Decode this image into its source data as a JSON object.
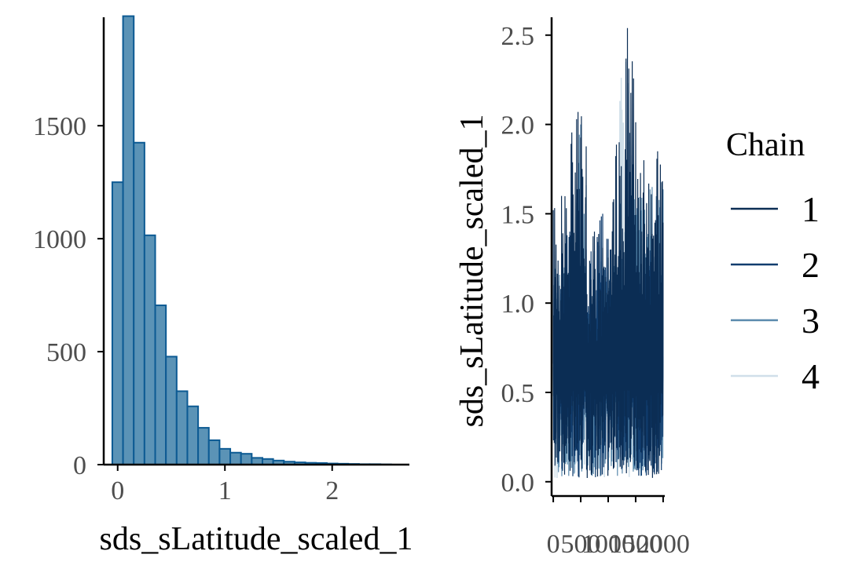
{
  "colors": {
    "bar_fill": "#5b93b6",
    "bar_stroke": "#0c5a93",
    "chain_1": "#0b2d54",
    "chain_2": "#113d6e",
    "chain_3": "#5a8aad",
    "chain_4": "#d0dfe9",
    "axis": "#000000",
    "tick_text": "#4d4d4d"
  },
  "chart_data": [
    {
      "type": "bar",
      "subtype": "histogram",
      "title": "",
      "xlabel": "sds_sLatitude_scaled_1",
      "ylabel": "",
      "xlim": [
        -0.13,
        2.72
      ],
      "ylim": [
        0,
        1980
      ],
      "xticks": [
        0,
        1,
        2
      ],
      "xtick_labels": [
        "0",
        "1",
        "2"
      ],
      "yticks": [
        0,
        500,
        1000,
        1500
      ],
      "ytick_labels": [
        "0",
        "500",
        "1000",
        "1500"
      ],
      "bin_width": 0.1,
      "bin_starts": [
        -0.05,
        0.05,
        0.15,
        0.25,
        0.35,
        0.45,
        0.55,
        0.65,
        0.75,
        0.85,
        0.95,
        1.05,
        1.15,
        1.25,
        1.35,
        1.45,
        1.55,
        1.65,
        1.75,
        1.85,
        1.95,
        2.05,
        2.15,
        2.25,
        2.35,
        2.45
      ],
      "values": [
        1250,
        1985,
        1425,
        1015,
        705,
        478,
        325,
        258,
        163,
        108,
        70,
        53,
        48,
        30,
        25,
        18,
        13,
        10,
        8,
        7,
        5,
        4,
        3,
        2,
        2,
        1
      ],
      "grid": false,
      "legend": "none"
    },
    {
      "type": "line",
      "subtype": "trace",
      "title": "",
      "xlabel": "",
      "ylabel": "sds_sLatitude_scaled_1",
      "xlim": [
        -30,
        2030
      ],
      "ylim": [
        -0.08,
        2.6
      ],
      "xticks": [
        0,
        500,
        1000,
        1500,
        2000
      ],
      "xtick_labels": [
        "0",
        "500",
        "1000",
        "1500",
        "2000"
      ],
      "yticks": [
        0.0,
        0.5,
        1.0,
        1.5,
        2.0,
        2.5
      ],
      "ytick_labels": [
        "0.0",
        "0.5",
        "1.0",
        "1.5",
        "2.0",
        "2.5"
      ],
      "iterations": 2000,
      "grid": false,
      "legend": "right",
      "legend_title": "Chain",
      "series": [
        {
          "name": "1",
          "color": "#0b2d54",
          "x": [
            0,
            150,
            300,
            450,
            600,
            750,
            900,
            1050,
            1200,
            1300,
            1350,
            1500,
            1650,
            1800,
            1900,
            2000
          ],
          "values": [
            0.9,
            1.6,
            1.2,
            2.07,
            1.1,
            1.4,
            0.8,
            1.3,
            1.9,
            1.1,
            2.54,
            1.2,
            1.8,
            0.6,
            1.85,
            1.0
          ]
        },
        {
          "name": "2",
          "color": "#113d6e",
          "x": [
            0,
            150,
            300,
            450,
            600,
            750,
            900,
            1050,
            1200,
            1350,
            1500,
            1650,
            1800,
            1950,
            2000
          ],
          "values": [
            1.1,
            0.9,
            1.4,
            0.6,
            1.3,
            1.0,
            1.5,
            0.7,
            1.2,
            1.0,
            1.4,
            0.8,
            1.3,
            0.9,
            1.05
          ]
        },
        {
          "name": "3",
          "color": "#5a8aad",
          "x": [
            0,
            200,
            400,
            500,
            600,
            800,
            1000,
            1200,
            1400,
            1600,
            1800,
            2000
          ],
          "values": [
            0.8,
            1.2,
            0.6,
            2.0,
            1.0,
            0.7,
            1.3,
            0.6,
            1.6,
            0.9,
            1.65,
            0.7
          ]
        },
        {
          "name": "4",
          "color": "#d0dfe9",
          "x": [
            0,
            200,
            400,
            600,
            800,
            1000,
            1200,
            1320,
            1400,
            1600,
            1800,
            2000
          ],
          "values": [
            0.6,
            0.8,
            0.5,
            0.9,
            0.6,
            1.0,
            0.7,
            2.35,
            0.8,
            0.7,
            0.9,
            0.7
          ]
        }
      ]
    }
  ]
}
